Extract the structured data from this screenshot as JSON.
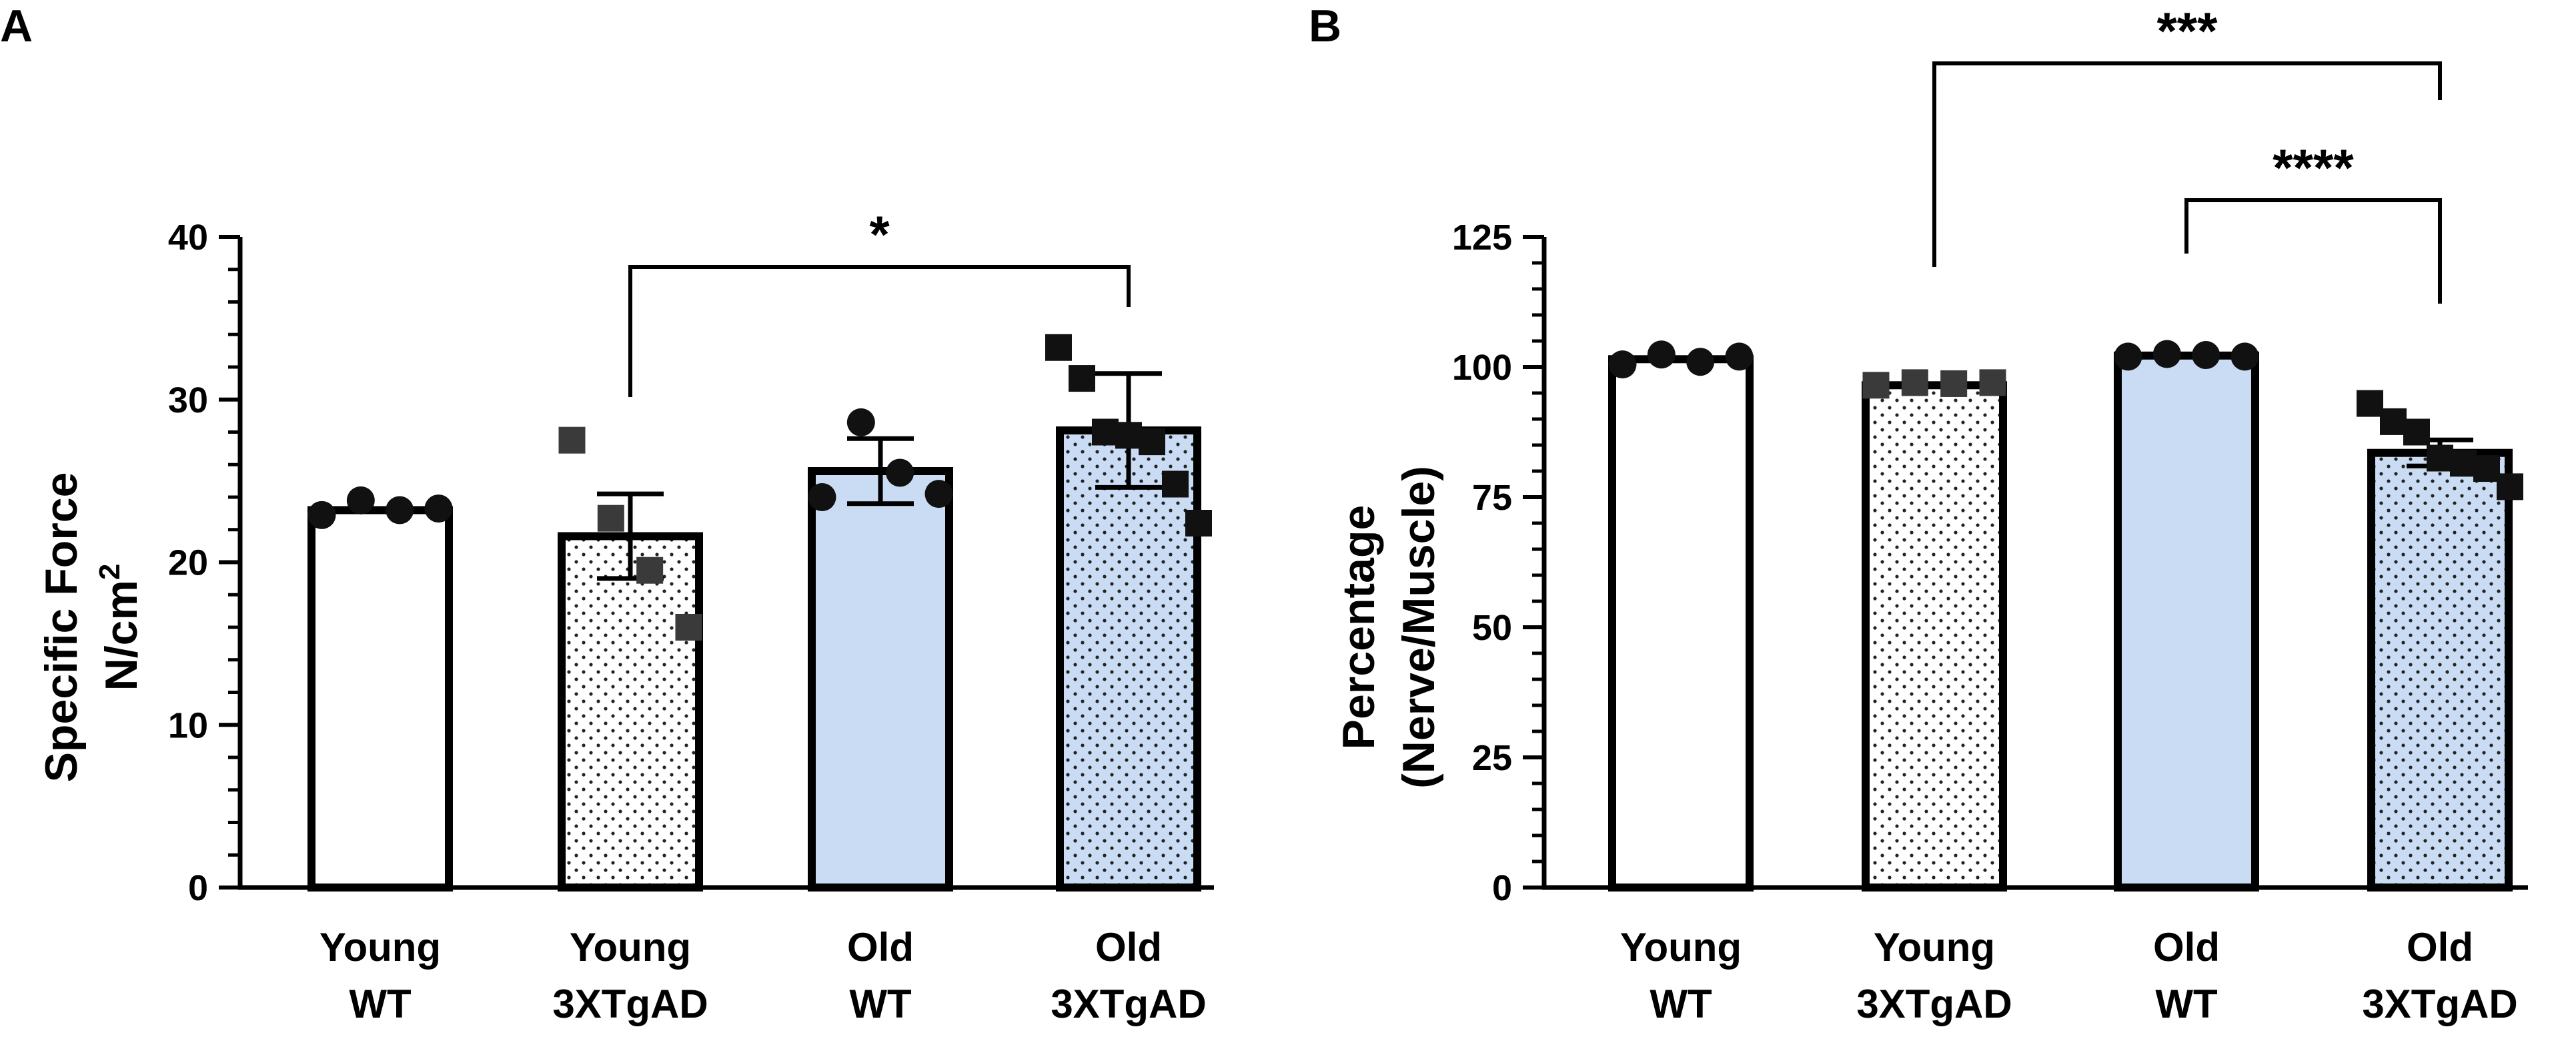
{
  "chart_data": [
    {
      "panel": "A",
      "type": "bar",
      "ylabel_line1": "Specific Force",
      "ylabel_line2": "N/cm",
      "ylabel_sup": "2",
      "ylim": [
        0,
        40
      ],
      "yticks": [
        0,
        10,
        20,
        30,
        40
      ],
      "categories": [
        {
          "line1": "Young",
          "line2": "WT"
        },
        {
          "line1": "Young",
          "line2": "3XTgAD"
        },
        {
          "line1": "Old",
          "line2": "WT"
        },
        {
          "line1": "Old",
          "line2": "3XTgAD"
        }
      ],
      "bars": [
        {
          "mean": 23.2,
          "sem": 0,
          "fill": "#ffffff",
          "dotted": false,
          "marker": "circle",
          "points": [
            22.9,
            23.8,
            23.2,
            23.3
          ]
        },
        {
          "mean": 21.6,
          "sem": 2.6,
          "fill": "#ffffff",
          "dotted": true,
          "marker": "square",
          "points": [
            27.5,
            22.7,
            19.5,
            16.0
          ]
        },
        {
          "mean": 25.6,
          "sem": 2.0,
          "fill": "#c9dcf3",
          "dotted": false,
          "marker": "circle",
          "points": [
            24.0,
            28.6,
            25.5,
            24.2
          ]
        },
        {
          "mean": 28.1,
          "sem": 3.5,
          "fill": "#c9dcf3",
          "dotted": true,
          "marker": "square",
          "points": [
            33.2,
            31.3,
            28.0,
            27.8,
            27.4,
            24.8,
            22.4
          ]
        }
      ],
      "significance": [
        {
          "from": 1,
          "to": 3,
          "label": "*"
        }
      ]
    },
    {
      "panel": "B",
      "type": "bar",
      "ylabel_line1": "Percentage",
      "ylabel_line2": "(Nerve/Muscle)",
      "ylabel_sup": "",
      "ylim": [
        0,
        125
      ],
      "yticks": [
        0,
        25,
        50,
        75,
        100,
        125
      ],
      "categories": [
        {
          "line1": "Young",
          "line2": "WT"
        },
        {
          "line1": "Young",
          "line2": "3XTgAD"
        },
        {
          "line1": "Old",
          "line2": "WT"
        },
        {
          "line1": "Old",
          "line2": "3XTgAD"
        }
      ],
      "bars": [
        {
          "mean": 101.5,
          "sem": 0,
          "fill": "#ffffff",
          "dotted": false,
          "marker": "circle",
          "points": [
            100.5,
            102.4,
            101.0,
            102.0
          ]
        },
        {
          "mean": 96.5,
          "sem": 0,
          "fill": "#ffffff",
          "dotted": true,
          "marker": "square",
          "points": [
            96.5,
            97.0,
            96.8,
            97.0
          ]
        },
        {
          "mean": 102.2,
          "sem": 0,
          "fill": "#c9dcf3",
          "dotted": false,
          "marker": "circle",
          "points": [
            102.0,
            102.5,
            102.3,
            102.0
          ]
        },
        {
          "mean": 83.5,
          "sem": 2.5,
          "fill": "#c9dcf3",
          "dotted": true,
          "marker": "square",
          "points": [
            93.0,
            89.5,
            87.5,
            82.5,
            81.5,
            80.5,
            77.0
          ]
        }
      ],
      "significance": [
        {
          "from": 1,
          "to": 3,
          "label": "***"
        },
        {
          "from": 2,
          "to": 3,
          "label": "****"
        }
      ]
    }
  ]
}
